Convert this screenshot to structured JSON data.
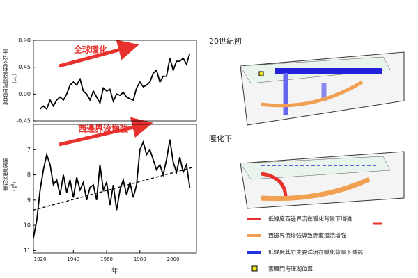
{
  "chart_data": [
    {
      "type": "line",
      "ylabel": "平均全球表面溫度異常",
      "ylabel_unit": "(°C)",
      "annotation": "全球暖化",
      "xlim": [
        1916,
        2014
      ],
      "ylim": [
        -0.45,
        0.9
      ],
      "yticks": [
        {
          "value": 0.9,
          "label": "0.90"
        },
        0.45,
        {
          "value": 0,
          "label": "0.00"
        },
        -0.45
      ],
      "series": [
        {
          "color": "#000000",
          "style": "solid",
          "x": [
            1920,
            1922,
            1924,
            1926,
            1928,
            1930,
            1932,
            1934,
            1936,
            1938,
            1940,
            1942,
            1944,
            1946,
            1948,
            1950,
            1952,
            1954,
            1956,
            1958,
            1960,
            1962,
            1964,
            1966,
            1968,
            1970,
            1972,
            1974,
            1976,
            1978,
            1980,
            1982,
            1984,
            1986,
            1988,
            1990,
            1992,
            1994,
            1996,
            1998,
            2000,
            2002,
            2004,
            2006,
            2008,
            2010
          ],
          "values": [
            -0.25,
            -0.2,
            -0.25,
            -0.1,
            -0.2,
            -0.1,
            -0.05,
            -0.1,
            0.0,
            0.15,
            0.2,
            0.15,
            0.25,
            0.05,
            0.0,
            -0.1,
            0.05,
            -0.05,
            -0.15,
            0.1,
            0.05,
            0.08,
            -0.12,
            0.0,
            -0.02,
            0.03,
            -0.05,
            -0.08,
            -0.1,
            0.1,
            0.2,
            0.12,
            0.15,
            0.2,
            0.35,
            0.4,
            0.2,
            0.3,
            0.3,
            0.6,
            0.4,
            0.55,
            0.55,
            0.6,
            0.5,
            0.68
          ]
        }
      ]
    },
    {
      "type": "line",
      "ylabel": "珊瑚氧同位素",
      "ylabel_unit": "(‰)",
      "annotation": "西邊界流增強",
      "xlabel": "年",
      "xlim": [
        1916,
        2014
      ],
      "ylim": [
        11.1,
        6
      ],
      "yticks": [
        7,
        8,
        9,
        10,
        11
      ],
      "xticks": [
        1920,
        1940,
        1960,
        1980,
        2000
      ],
      "series": [
        {
          "color": "#000000",
          "style": "solid",
          "x": [
            1916,
            1918,
            1920,
            1922,
            1924,
            1926,
            1928,
            1930,
            1932,
            1934,
            1936,
            1938,
            1940,
            1942,
            1944,
            1946,
            1948,
            1950,
            1952,
            1954,
            1956,
            1958,
            1960,
            1962,
            1964,
            1966,
            1968,
            1970,
            1972,
            1974,
            1976,
            1978,
            1980,
            1982,
            1984,
            1986,
            1988,
            1990,
            1992,
            1994,
            1996,
            1998,
            2000,
            2002,
            2004,
            2006,
            2008,
            2010
          ],
          "values": [
            10.5,
            9.8,
            8.6,
            7.8,
            7.2,
            7.6,
            8.4,
            8.2,
            8.8,
            8.0,
            8.7,
            8.2,
            8.9,
            8.1,
            8.6,
            8.3,
            9.0,
            8.5,
            8.4,
            9.0,
            7.6,
            8.6,
            8.3,
            9.2,
            8.4,
            9.4,
            8.6,
            8.2,
            8.8,
            8.3,
            8.9,
            8.4,
            7.0,
            6.7,
            7.2,
            7.0,
            7.4,
            7.8,
            7.6,
            8.0,
            7.4,
            6.6,
            7.5,
            7.9,
            7.3,
            7.9,
            7.6,
            8.5
          ]
        },
        {
          "color": "#000000",
          "style": "dashed",
          "x": [
            1916,
            2012
          ],
          "values": [
            9.4,
            7.7
          ]
        }
      ]
    }
  ],
  "diagram": {
    "panel_titles": [
      "20世紀初",
      "暖化下"
    ],
    "legend": [
      "低緯度西邊界流在暖化背景下增強",
      "西邊界流增強導致赤道潛流增強",
      "低緯度其它主要洋流在暖化背景下減弱",
      "索羅門海珊瑚位置"
    ]
  }
}
